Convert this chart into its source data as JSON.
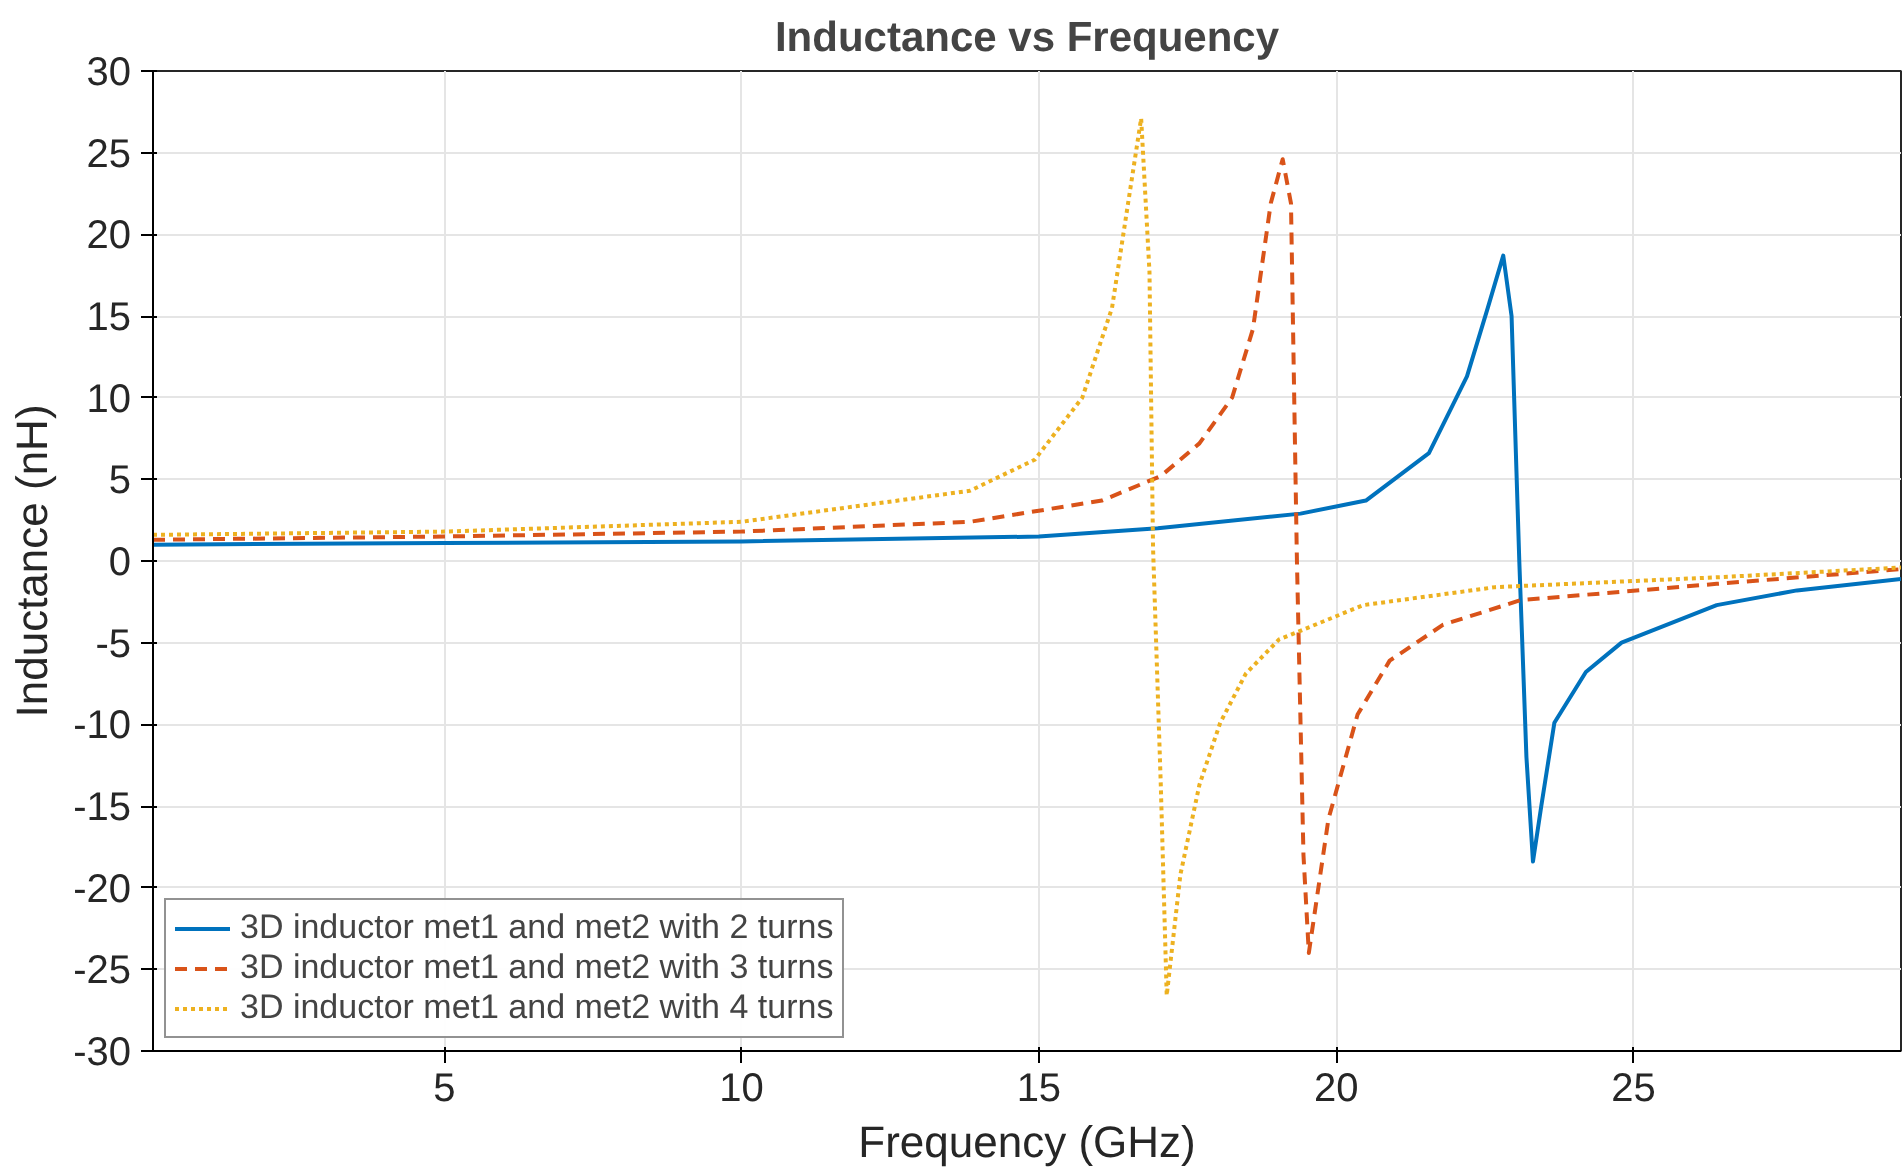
{
  "chart_data": {
    "type": "line",
    "title": "Inductance vs Frequency",
    "xlabel": "Frequency (GHz)",
    "ylabel": "Inductance (nH)",
    "xlim": [
      0.1,
      29.5
    ],
    "ylim": [
      -30,
      30
    ],
    "xticks": [
      5,
      10,
      15,
      20,
      25
    ],
    "yticks": [
      -30,
      -25,
      -20,
      -15,
      -10,
      -5,
      0,
      5,
      10,
      15,
      20,
      25,
      30
    ],
    "grid": true,
    "legend": "bottom left",
    "series": [
      {
        "name": "3D inductor met1 and met2 with 2 turns",
        "color": "#0072bd",
        "line_style": "solid",
        "x": [
          0.1,
          5,
          10,
          15,
          17,
          19.4,
          20.5,
          21.56,
          22.2,
          22.55,
          22.81,
          22.95,
          23.08,
          23.2,
          23.31,
          23.45,
          23.67,
          24.2,
          24.8,
          26.4,
          27.75,
          29.5
        ],
        "values": [
          1.0,
          1.1,
          1.2,
          1.5,
          2.0,
          2.9,
          3.7,
          6.6,
          11.3,
          15.5,
          18.7,
          15.0,
          0,
          -12,
          -18.4,
          -15.0,
          -9.9,
          -6.8,
          -5.0,
          -2.7,
          -1.8,
          -1.1
        ]
      },
      {
        "name": "3D inductor met1 and met2 with 3 turns",
        "color": "#d95319",
        "line_style": "dashed",
        "x": [
          0.1,
          5,
          10,
          13.84,
          16.06,
          17.05,
          17.7,
          18.25,
          18.6,
          18.9,
          19.1,
          19.24,
          19.34,
          19.45,
          19.54,
          19.87,
          20.36,
          20.9,
          21.8,
          23.1,
          26.4,
          29.5
        ],
        "values": [
          1.3,
          1.5,
          1.8,
          2.4,
          3.7,
          5.2,
          7.2,
          10.0,
          14.2,
          21.9,
          24.6,
          21.9,
          0,
          -18,
          -24.0,
          -15.8,
          -9.4,
          -6.1,
          -3.9,
          -2.4,
          -1.4,
          -0.5
        ]
      },
      {
        "name": "3D inductor met1 and met2 with 4 turns",
        "color": "#edb120",
        "line_style": "dotted",
        "x": [
          0.1,
          5,
          10,
          13.84,
          14.93,
          15.73,
          16.23,
          16.5,
          16.72,
          16.86,
          16.92,
          17.05,
          17.15,
          17.38,
          17.7,
          18.05,
          18.48,
          19.04,
          20.46,
          22.68,
          26.4,
          29.5
        ],
        "values": [
          1.6,
          1.8,
          2.4,
          4.3,
          6.2,
          10.0,
          15.5,
          21.9,
          27.1,
          17.7,
          0.8,
          -13.7,
          -26.6,
          -19.2,
          -13.7,
          -9.9,
          -6.9,
          -4.8,
          -2.7,
          -1.6,
          -1.0,
          -0.4
        ]
      }
    ]
  }
}
